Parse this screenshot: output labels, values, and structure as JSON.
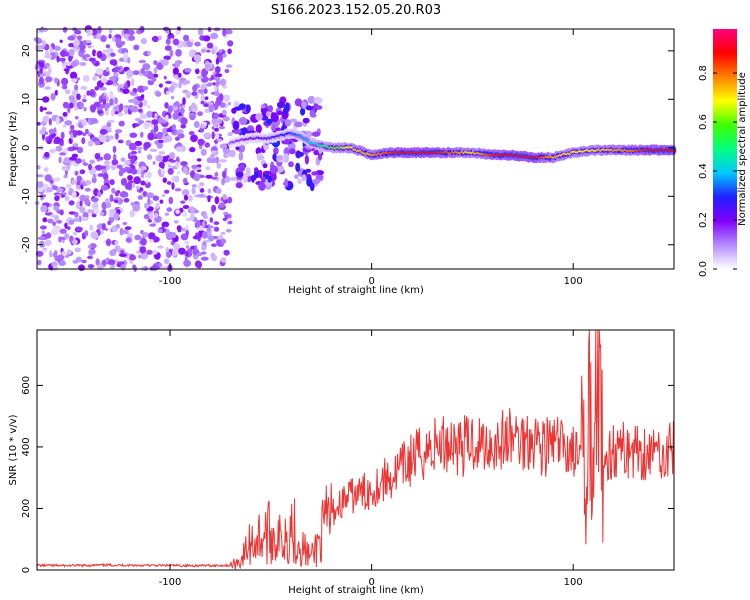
{
  "page_title": "S166.2023.152.05.20.R03",
  "chart_data": [
    {
      "type": "heatmap",
      "xlabel": "Height of straight line (km)",
      "ylabel": "Frequency (Hz)",
      "xlim": [
        -166,
        150
      ],
      "ylim": [
        -25,
        24.5
      ],
      "x_ticks": [
        -100,
        0,
        100
      ],
      "x_tick_labels": [
        "-100",
        "0",
        "100"
      ],
      "y_ticks": [
        -20,
        -10,
        0,
        10,
        20
      ],
      "y_tick_labels": [
        "-20",
        "-10",
        "0",
        "10",
        "20"
      ],
      "colorbar": {
        "label": "Normalized spectral amplitude",
        "range": [
          0,
          0.98
        ],
        "ticks": [
          0.0,
          0.2,
          0.4,
          0.6,
          0.8
        ],
        "tick_labels": [
          "0.0",
          "0.2",
          "0.4",
          "0.6",
          "0.8"
        ],
        "colors": [
          "#ffffff",
          "#b48cff",
          "#8000ff",
          "#2020ff",
          "#00c8ff",
          "#00ff80",
          "#40ff00",
          "#ffff00",
          "#ff8000",
          "#ff0000",
          "#ff0080"
        ]
      },
      "noise_region": {
        "x_range": [
          -166,
          -70
        ],
        "y_range": [
          -25,
          24.5
        ],
        "amplitude": 0.12
      },
      "signal_ridge": {
        "x": [
          -70,
          -60,
          -50,
          -40,
          -35,
          -30,
          -20,
          -10,
          0,
          10,
          20,
          30,
          40,
          50,
          60,
          70,
          80,
          90,
          100,
          110,
          120,
          130,
          140,
          150
        ],
        "frequency": [
          1,
          2,
          2,
          3,
          2.5,
          1,
          0,
          0,
          -1.5,
          -1,
          -1,
          -1,
          -1,
          -1,
          -1.5,
          -1.5,
          -2,
          -2,
          -1,
          -0.5,
          -0.5,
          -0.5,
          -0.5,
          -0.5
        ],
        "amplitude": [
          0.15,
          0.2,
          0.25,
          0.3,
          0.35,
          0.4,
          0.55,
          0.7,
          0.75,
          0.85,
          0.9,
          0.9,
          0.8,
          0.7,
          0.85,
          0.9,
          0.9,
          0.75,
          0.7,
          0.7,
          0.75,
          0.8,
          0.9,
          0.9
        ]
      }
    },
    {
      "type": "line",
      "xlabel": "Height of straight line (km)",
      "ylabel": "SNR (10 * v/v)",
      "xlim": [
        -166,
        150
      ],
      "ylim": [
        0,
        780
      ],
      "x_ticks": [
        -100,
        0,
        100
      ],
      "x_tick_labels": [
        "-100",
        "0",
        "100"
      ],
      "y_ticks": [
        0,
        200,
        400,
        600
      ],
      "y_tick_labels": [
        "0",
        "200",
        "400",
        "600"
      ],
      "color": "#ee3333",
      "x": [
        -166,
        -150,
        -130,
        -110,
        -90,
        -70,
        -65,
        -60,
        -55,
        -50,
        -45,
        -40,
        -35,
        -30,
        -25,
        -20,
        -15,
        -10,
        -5,
        0,
        5,
        10,
        15,
        20,
        25,
        30,
        35,
        40,
        45,
        50,
        55,
        60,
        65,
        70,
        75,
        80,
        85,
        90,
        95,
        100,
        103,
        106,
        108,
        110,
        112,
        114,
        120,
        130,
        140,
        150
      ],
      "y": [
        15,
        14,
        16,
        15,
        14,
        15,
        30,
        90,
        110,
        120,
        95,
        150,
        80,
        40,
        110,
        180,
        220,
        240,
        250,
        260,
        290,
        300,
        330,
        360,
        380,
        400,
        410,
        420,
        400,
        420,
        410,
        410,
        420,
        430,
        420,
        440,
        400,
        410,
        400,
        390,
        350,
        480,
        560,
        300,
        560,
        370,
        390,
        390,
        380,
        390
      ]
    }
  ]
}
